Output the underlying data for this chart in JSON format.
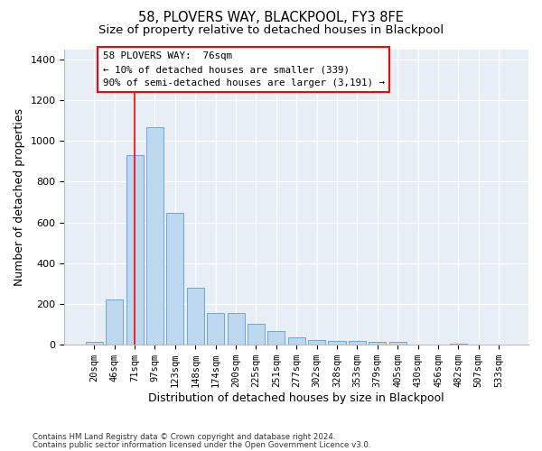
{
  "title1": "58, PLOVERS WAY, BLACKPOOL, FY3 8FE",
  "title2": "Size of property relative to detached houses in Blackpool",
  "xlabel": "Distribution of detached houses by size in Blackpool",
  "ylabel": "Number of detached properties",
  "categories": [
    "20sqm",
    "46sqm",
    "71sqm",
    "97sqm",
    "123sqm",
    "148sqm",
    "174sqm",
    "200sqm",
    "225sqm",
    "251sqm",
    "277sqm",
    "302sqm",
    "328sqm",
    "353sqm",
    "379sqm",
    "405sqm",
    "430sqm",
    "456sqm",
    "482sqm",
    "507sqm",
    "533sqm"
  ],
  "values": [
    10,
    220,
    930,
    1070,
    645,
    280,
    155,
    155,
    100,
    65,
    35,
    20,
    18,
    18,
    12,
    10,
    0,
    0,
    5,
    0,
    0
  ],
  "bar_color": "#bdd7ee",
  "bar_edge_color": "#5b9bd5",
  "red_line_x": 2.0,
  "annotation_box_text": "58 PLOVERS WAY:  76sqm\n← 10% of detached houses are smaller (339)\n90% of semi-detached houses are larger (3,191) →",
  "ylim": [
    0,
    1450
  ],
  "yticks": [
    0,
    200,
    400,
    600,
    800,
    1000,
    1200,
    1400
  ],
  "footnote1": "Contains HM Land Registry data © Crown copyright and database right 2024.",
  "footnote2": "Contains public sector information licensed under the Open Government Licence v3.0.",
  "background_color": "#e8eef5",
  "title_fontsize": 10.5,
  "subtitle_fontsize": 9.5,
  "tick_fontsize": 7.5,
  "label_fontsize": 9
}
